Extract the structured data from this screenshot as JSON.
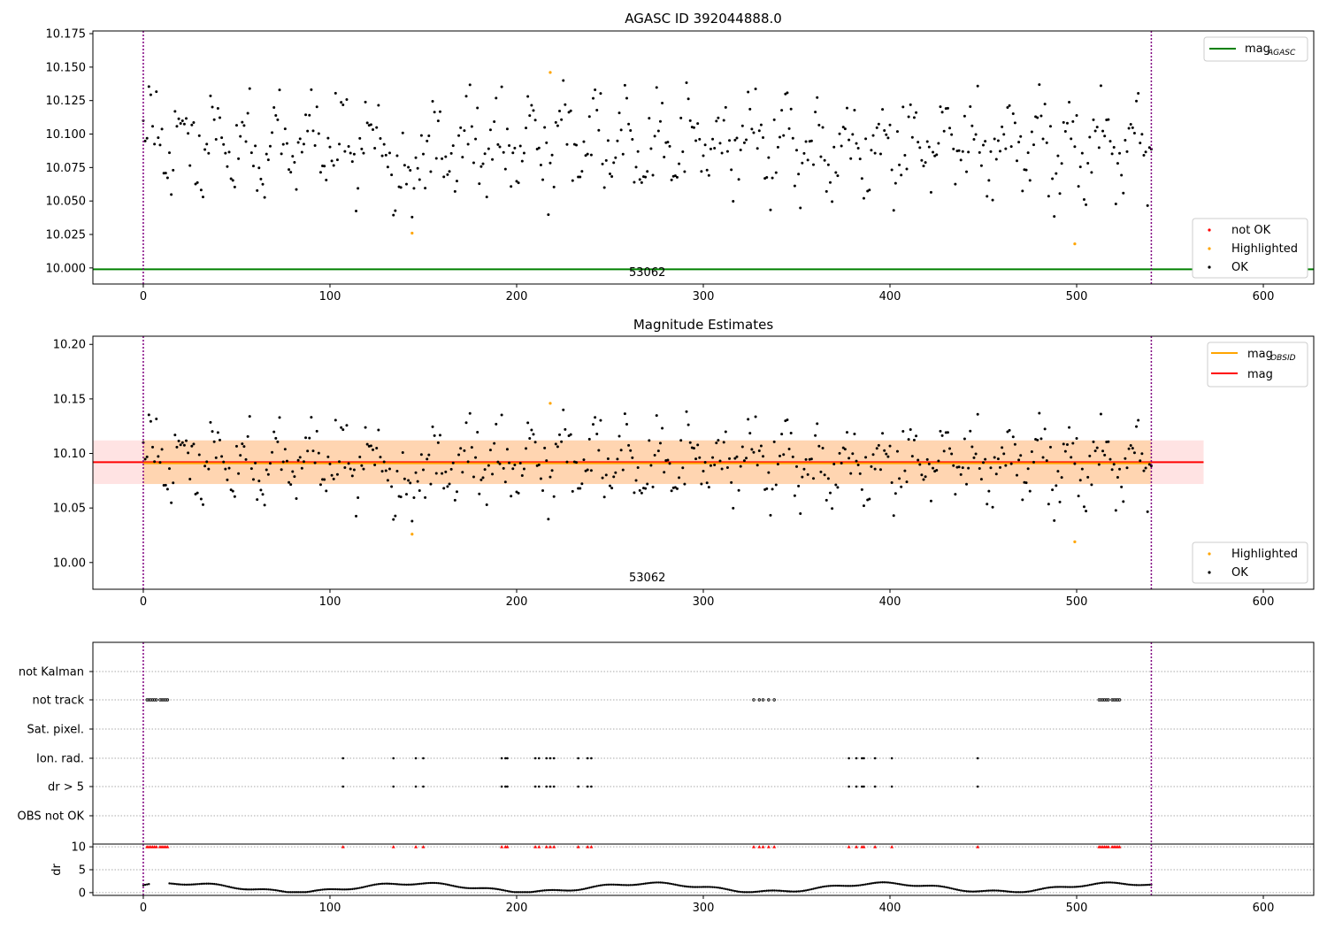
{
  "chart_data": [
    {
      "id": "top",
      "type": "scatter",
      "title": "AGASC ID 392044888.0",
      "xlim": [
        -27,
        627
      ],
      "ylim": [
        9.988,
        10.177
      ],
      "xticks": [
        0,
        100,
        200,
        300,
        400,
        500,
        600
      ],
      "yticks": [
        {
          "v": 10.0,
          "label": "10.000"
        },
        {
          "v": 10.025,
          "label": "10.025"
        },
        {
          "v": 10.05,
          "label": "10.050"
        },
        {
          "v": 10.075,
          "label": "10.075"
        },
        {
          "v": 10.1,
          "label": "10.100"
        },
        {
          "v": 10.125,
          "label": "10.125"
        },
        {
          "v": 10.15,
          "label": "10.150"
        },
        {
          "v": 10.175,
          "label": "10.175"
        }
      ],
      "vlines": [
        0,
        540
      ],
      "hline": {
        "y": 9.999,
        "color": "#008000"
      },
      "obsid_label": {
        "text": "53062",
        "x": 270
      },
      "highlighted": [
        [
          144,
          10.026
        ],
        [
          218,
          10.146
        ],
        [
          499,
          10.018
        ]
      ],
      "legend_upper": [
        {
          "name": "mag",
          "sub": "AGASC",
          "color": "#008000"
        }
      ],
      "legend_lower": [
        {
          "name": "not OK",
          "color": "#ff0000"
        },
        {
          "name": "Highlighted",
          "color": "#ffa500"
        },
        {
          "name": "OK",
          "color": "#000000"
        }
      ]
    },
    {
      "id": "mid",
      "type": "scatter",
      "title": "Magnitude Estimates",
      "xlim": [
        -27,
        627
      ],
      "ylim": [
        9.9755,
        10.2075
      ],
      "xticks": [
        0,
        100,
        200,
        300,
        400,
        500,
        600
      ],
      "yticks": [
        {
          "v": 10.0,
          "label": "10.00"
        },
        {
          "v": 10.05,
          "label": "10.05"
        },
        {
          "v": 10.1,
          "label": "10.10"
        },
        {
          "v": 10.15,
          "label": "10.15"
        },
        {
          "v": 10.2,
          "label": "10.20"
        }
      ],
      "vlines": [
        0,
        540
      ],
      "mean": 10.092,
      "band_pink": {
        "x": [
          -27,
          568
        ],
        "y": [
          10.072,
          10.112
        ]
      },
      "band_orange": {
        "x": [
          0,
          540
        ],
        "y": [
          10.072,
          10.112
        ]
      },
      "line_red": {
        "x": [
          -27,
          568
        ],
        "y": 10.092
      },
      "line_orange": {
        "x": [
          0,
          540
        ],
        "y": 10.091
      },
      "obsid_label": {
        "text": "53062",
        "x": 270
      },
      "highlighted": [
        [
          144,
          10.026
        ],
        [
          218,
          10.146
        ],
        [
          499,
          10.019
        ]
      ],
      "legend_upper": [
        {
          "name": "mag",
          "sub": "OBSID",
          "color": "#ffa500"
        },
        {
          "name": "mag",
          "sub": "",
          "color": "#ff0000"
        }
      ],
      "legend_lower": [
        {
          "name": "Highlighted",
          "color": "#ffa500"
        },
        {
          "name": "OK",
          "color": "#000000"
        }
      ]
    },
    {
      "id": "flags",
      "type": "scatter",
      "xlim": [
        -27,
        627
      ],
      "xticks": [
        0,
        100,
        200,
        300,
        400,
        500,
        600
      ],
      "vlines": [
        0,
        540
      ],
      "categories": [
        "not Kalman",
        "not track",
        "Sat. pixel.",
        "Ion. rad.",
        "dr > 5",
        "OBS not OK"
      ],
      "not_track_x": [
        2,
        3,
        4,
        5,
        6,
        7,
        9,
        10,
        11,
        12,
        13,
        327,
        330,
        332,
        335,
        338,
        512,
        513,
        514,
        515,
        516,
        517,
        519,
        520,
        521,
        522,
        523
      ],
      "ion_rad_x": [
        107,
        134,
        146,
        150,
        192,
        194,
        195,
        210,
        212,
        216,
        218,
        220,
        233,
        238,
        240,
        378,
        382,
        385,
        386,
        392,
        401,
        447
      ],
      "dr5_x": [
        107,
        134,
        146,
        150,
        192,
        194,
        195,
        210,
        212,
        216,
        218,
        220,
        233,
        238,
        240,
        378,
        382,
        385,
        386,
        392,
        401,
        447
      ]
    },
    {
      "id": "dr",
      "type": "scatter",
      "ylabel": "dr",
      "xlim": [
        -27,
        627
      ],
      "ylim": [
        -0.6,
        10.6
      ],
      "xticks": [
        0,
        100,
        200,
        300,
        400,
        500,
        600
      ],
      "yticks": [
        {
          "v": 0,
          "label": "0"
        },
        {
          "v": 5,
          "label": "5"
        },
        {
          "v": 10,
          "label": "10"
        }
      ],
      "vlines": [
        0,
        540
      ],
      "flag_x": [
        2,
        3,
        4,
        5,
        6,
        7,
        9,
        10,
        11,
        12,
        13,
        107,
        134,
        146,
        150,
        192,
        194,
        195,
        210,
        212,
        216,
        218,
        220,
        233,
        238,
        240,
        327,
        330,
        332,
        335,
        338,
        378,
        382,
        385,
        386,
        392,
        401,
        447,
        512,
        513,
        514,
        515,
        516,
        517,
        519,
        520,
        521,
        522,
        523
      ],
      "flag_y": 10
    }
  ]
}
